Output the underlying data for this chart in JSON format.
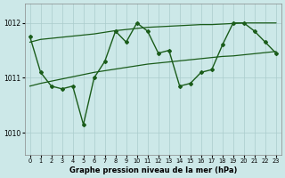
{
  "bg_color": "#cce8e8",
  "grid_color": "#aacccc",
  "line_color": "#1a5c1a",
  "title": "Graphe pression niveau de la mer (hPa)",
  "xlim": [
    -0.5,
    23.5
  ],
  "ylim": [
    1009.6,
    1012.35
  ],
  "yticks": [
    1010,
    1011,
    1012
  ],
  "xticks": [
    0,
    1,
    2,
    3,
    4,
    5,
    6,
    7,
    8,
    9,
    10,
    11,
    12,
    13,
    14,
    15,
    16,
    17,
    18,
    19,
    20,
    21,
    22,
    23
  ],
  "hours": [
    0,
    1,
    2,
    3,
    4,
    5,
    6,
    7,
    8,
    9,
    10,
    11,
    12,
    13,
    14,
    15,
    16,
    17,
    18,
    19,
    20,
    21,
    22,
    23
  ],
  "zigzag": [
    1011.75,
    1011.1,
    1010.85,
    1010.8,
    1010.85,
    1010.15,
    1011.0,
    1011.3,
    1011.85,
    1011.65,
    1012.0,
    1011.85,
    1011.45,
    1011.5,
    1010.85,
    1010.9,
    1011.1,
    1011.15,
    1011.6,
    1012.0,
    1012.0,
    1011.85,
    1011.65,
    1011.45
  ],
  "upper_line": [
    1011.65,
    1011.7,
    1011.72,
    1011.74,
    1011.76,
    1011.78,
    1011.8,
    1011.83,
    1011.86,
    1011.88,
    1011.9,
    1011.92,
    1011.93,
    1011.94,
    1011.95,
    1011.96,
    1011.97,
    1011.97,
    1011.98,
    1011.99,
    1012.0,
    1012.0,
    1012.0,
    1012.0
  ],
  "lower_line": [
    1010.85,
    1010.9,
    1010.94,
    1010.98,
    1011.02,
    1011.06,
    1011.1,
    1011.13,
    1011.16,
    1011.19,
    1011.22,
    1011.25,
    1011.27,
    1011.29,
    1011.31,
    1011.33,
    1011.35,
    1011.37,
    1011.39,
    1011.4,
    1011.42,
    1011.44,
    1011.46,
    1011.48
  ]
}
